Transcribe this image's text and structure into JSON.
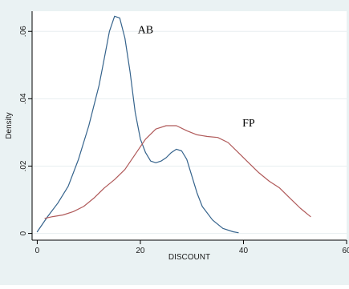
{
  "chart_data": {
    "type": "line",
    "title": "",
    "xlabel": "DISCOUNT",
    "ylabel": "Density",
    "xlim": [
      -1,
      60
    ],
    "ylim": [
      -0.002,
      0.066
    ],
    "x_ticks": [
      {
        "value": 0,
        "label": "0"
      },
      {
        "value": 20,
        "label": "20"
      },
      {
        "value": 40,
        "label": "40"
      },
      {
        "value": 60,
        "label": "60"
      }
    ],
    "y_ticks": [
      {
        "value": 0,
        "label": "0"
      },
      {
        "value": 0.02,
        "label": ".02"
      },
      {
        "value": 0.04,
        "label": ".04"
      },
      {
        "value": 0.06,
        "label": ".06"
      }
    ],
    "grid": true,
    "legend": "none",
    "background_color": "#eaf2f3",
    "plot_background_color": "#ffffff",
    "grid_color": "#e8eef0",
    "series": [
      {
        "name": "AB",
        "color": "#35638c",
        "points": [
          [
            0,
            0.0005
          ],
          [
            2,
            0.005
          ],
          [
            4,
            0.009
          ],
          [
            6,
            0.014
          ],
          [
            8,
            0.022
          ],
          [
            10,
            0.032
          ],
          [
            12,
            0.044
          ],
          [
            13,
            0.052
          ],
          [
            14,
            0.06
          ],
          [
            15,
            0.0645
          ],
          [
            16,
            0.064
          ],
          [
            17,
            0.058
          ],
          [
            18,
            0.048
          ],
          [
            19,
            0.036
          ],
          [
            20,
            0.028
          ],
          [
            21,
            0.024
          ],
          [
            22,
            0.0215
          ],
          [
            23,
            0.021
          ],
          [
            24,
            0.0215
          ],
          [
            25,
            0.0225
          ],
          [
            26,
            0.024
          ],
          [
            27,
            0.025
          ],
          [
            28,
            0.0245
          ],
          [
            29,
            0.022
          ],
          [
            30,
            0.017
          ],
          [
            31,
            0.012
          ],
          [
            32,
            0.008
          ],
          [
            34,
            0.004
          ],
          [
            36,
            0.0015
          ],
          [
            38,
            0.0005
          ],
          [
            39,
            0.0002
          ]
        ]
      },
      {
        "name": "FP",
        "color": "#b05a5a",
        "points": [
          [
            1.5,
            0.0045
          ],
          [
            3,
            0.005
          ],
          [
            5,
            0.0055
          ],
          [
            7,
            0.0065
          ],
          [
            9,
            0.008
          ],
          [
            11,
            0.0105
          ],
          [
            13,
            0.0135
          ],
          [
            15,
            0.016
          ],
          [
            17,
            0.019
          ],
          [
            19,
            0.0235
          ],
          [
            21,
            0.028
          ],
          [
            23,
            0.031
          ],
          [
            25,
            0.032
          ],
          [
            27,
            0.032
          ],
          [
            29,
            0.0305
          ],
          [
            31,
            0.0293
          ],
          [
            33,
            0.0288
          ],
          [
            35,
            0.0285
          ],
          [
            37,
            0.027
          ],
          [
            39,
            0.024
          ],
          [
            41,
            0.021
          ],
          [
            43,
            0.018
          ],
          [
            45,
            0.0155
          ],
          [
            47,
            0.0135
          ],
          [
            49,
            0.0105
          ],
          [
            51,
            0.0075
          ],
          [
            53,
            0.005
          ]
        ]
      }
    ],
    "annotations": [
      {
        "text": "AB",
        "x": 21,
        "y": 0.0595
      },
      {
        "text": "FP",
        "x": 41,
        "y": 0.0318
      }
    ]
  }
}
